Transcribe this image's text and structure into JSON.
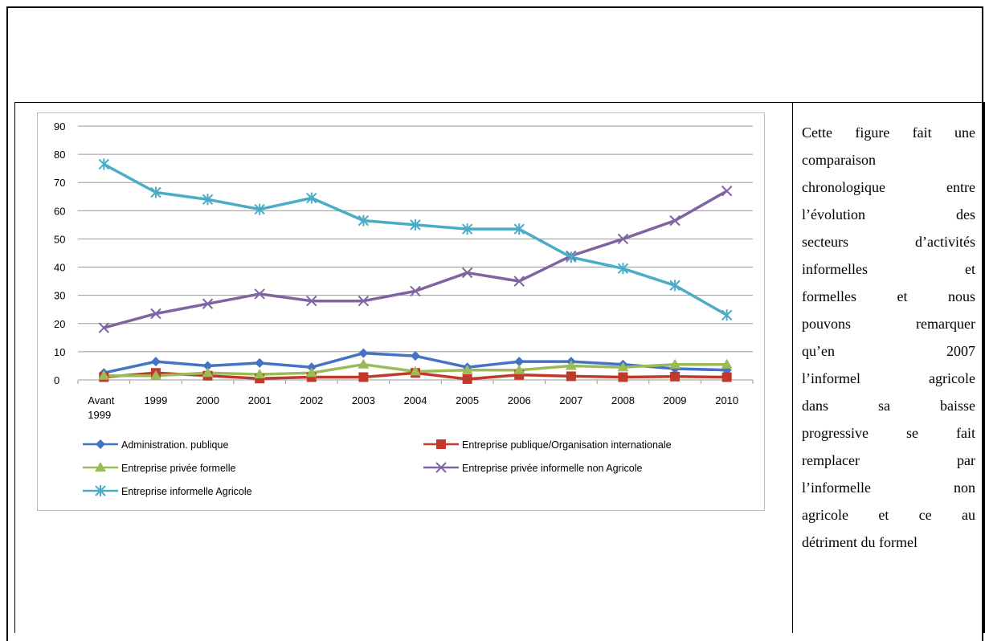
{
  "chart_data": {
    "type": "line",
    "title": "",
    "xlabel": "",
    "ylabel": "",
    "ylim": [
      0,
      90
    ],
    "yticks": [
      0,
      10,
      20,
      30,
      40,
      50,
      60,
      70,
      80,
      90
    ],
    "grid": true,
    "legend_position": "bottom",
    "categories": [
      "Avant 1999",
      "1999",
      "2000",
      "2001",
      "2002",
      "2003",
      "2004",
      "2005",
      "2006",
      "2007",
      "2008",
      "2009",
      "2010"
    ],
    "series": [
      {
        "name": "Administration. publique",
        "color": "#4472c4",
        "marker": "diamond",
        "values": [
          2.5,
          6.5,
          5,
          6,
          4.5,
          9.5,
          8.5,
          4.5,
          6.5,
          6.5,
          5.5,
          4,
          3.5
        ]
      },
      {
        "name": "Entreprise publique/Organisation  internationale",
        "color": "#c0392b",
        "marker": "square",
        "values": [
          1,
          2.5,
          1.5,
          0.5,
          1,
          1,
          2.5,
          0.3,
          1.8,
          1.3,
          1,
          1.2,
          1
        ]
      },
      {
        "name": "Entreprise privée formelle",
        "color": "#9bbb59",
        "marker": "triangle",
        "values": [
          1.5,
          1.5,
          2.5,
          2,
          2.5,
          5.5,
          3,
          3.5,
          3.5,
          5,
          4.5,
          5.5,
          5.5
        ]
      },
      {
        "name": "Entreprise privée informelle non Agricole",
        "color": "#8064a2",
        "marker": "x",
        "values": [
          18.5,
          23.5,
          27,
          30.5,
          28,
          28,
          31.5,
          38,
          35,
          44,
          50,
          56.5,
          67
        ]
      },
      {
        "name": "Entreprise informelle Agricole",
        "color": "#4bacc6",
        "marker": "star",
        "values": [
          76.5,
          66.5,
          64,
          60.5,
          64.5,
          56.5,
          55,
          53.5,
          53.5,
          43.5,
          39.5,
          33.5,
          23
        ]
      }
    ]
  },
  "side_text": {
    "lines": [
      "Cette figure fait une",
      "comparaison",
      "chronologique entre",
      "l’évolution des",
      "secteurs d’activités",
      "informelles et",
      "formelles et nous",
      "pouvons remarquer",
      "qu’en 2007",
      "l’informel agricole",
      "dans sa baisse",
      "progressive se fait",
      "remplacer par",
      "l’informelle non",
      "agricole et ce au",
      "détriment du formel"
    ]
  }
}
